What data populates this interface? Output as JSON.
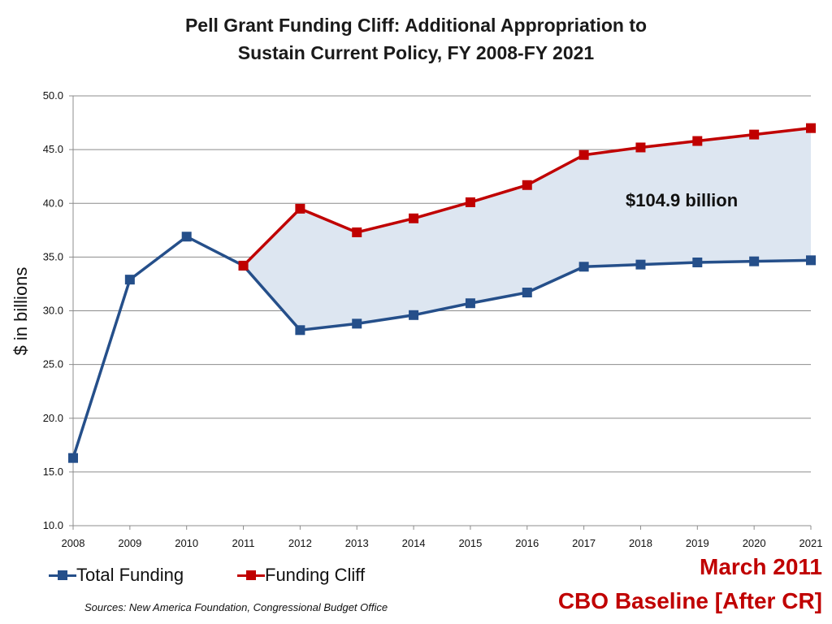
{
  "chart_data": {
    "type": "line",
    "title_line1": "Pell Grant Funding Cliff: Additional Appropriation to",
    "title_line2": "Sustain Current Policy, FY 2008-FY 2021",
    "ylabel": "$ in billions",
    "xlabel": "",
    "ylim": [
      10,
      50
    ],
    "yticks": [
      "10.0",
      "15.0",
      "20.0",
      "25.0",
      "30.0",
      "35.0",
      "40.0",
      "45.0",
      "50.0"
    ],
    "categories": [
      "2008",
      "2009",
      "2010",
      "2011",
      "2012",
      "2013",
      "2014",
      "2015",
      "2016",
      "2017",
      "2018",
      "2019",
      "2020",
      "2021"
    ],
    "series": [
      {
        "name": "Total Funding",
        "color": "#254f8a",
        "values": [
          16.3,
          32.9,
          36.9,
          34.2,
          28.2,
          28.8,
          29.6,
          30.7,
          31.7,
          34.1,
          34.3,
          34.5,
          34.6,
          34.7
        ]
      },
      {
        "name": "Funding Cliff",
        "color": "#c00000",
        "values": [
          null,
          null,
          null,
          34.2,
          39.5,
          37.3,
          38.6,
          40.1,
          41.7,
          44.5,
          45.2,
          45.8,
          46.4,
          47.0
        ]
      }
    ],
    "shaded_area_color": "#dde6f1",
    "annotation": "$104.9 billion",
    "grid": true,
    "legend_position": "bottom-left"
  },
  "sources": "Sources: New America Foundation, Congressional Budget Office",
  "stamp": {
    "line1": "March 2011",
    "line2": "CBO Baseline [After CR]"
  }
}
